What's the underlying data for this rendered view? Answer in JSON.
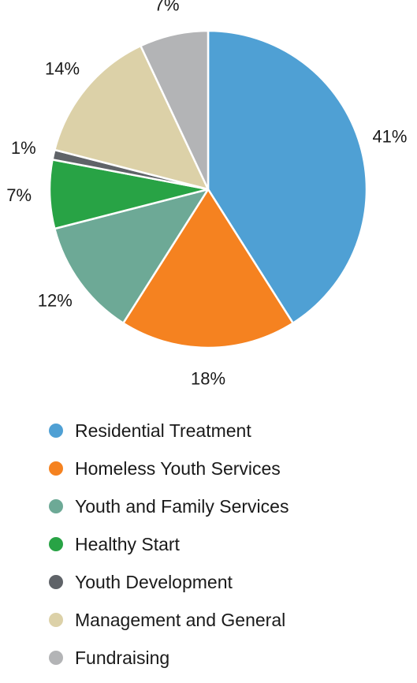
{
  "chart_data": {
    "type": "pie",
    "title": "",
    "legend_position": "bottom",
    "slices": [
      {
        "name": "Residential Treatment",
        "value": 41,
        "label": "41%",
        "color": "#4fa0d4"
      },
      {
        "name": "Homeless Youth Services",
        "value": 18,
        "label": "18%",
        "color": "#f58220"
      },
      {
        "name": "Youth and Family Services",
        "value": 12,
        "label": "12%",
        "color": "#6da996"
      },
      {
        "name": "Healthy Start",
        "value": 7,
        "label": "7%",
        "color": "#28a345"
      },
      {
        "name": "Youth Development",
        "value": 1,
        "label": "1%",
        "color": "#5f6368"
      },
      {
        "name": "Management and General",
        "value": 14,
        "label": "14%",
        "color": "#dcd1a8"
      },
      {
        "name": "Fundraising",
        "value": 7,
        "label": "7%",
        "color": "#b3b4b6"
      }
    ]
  }
}
